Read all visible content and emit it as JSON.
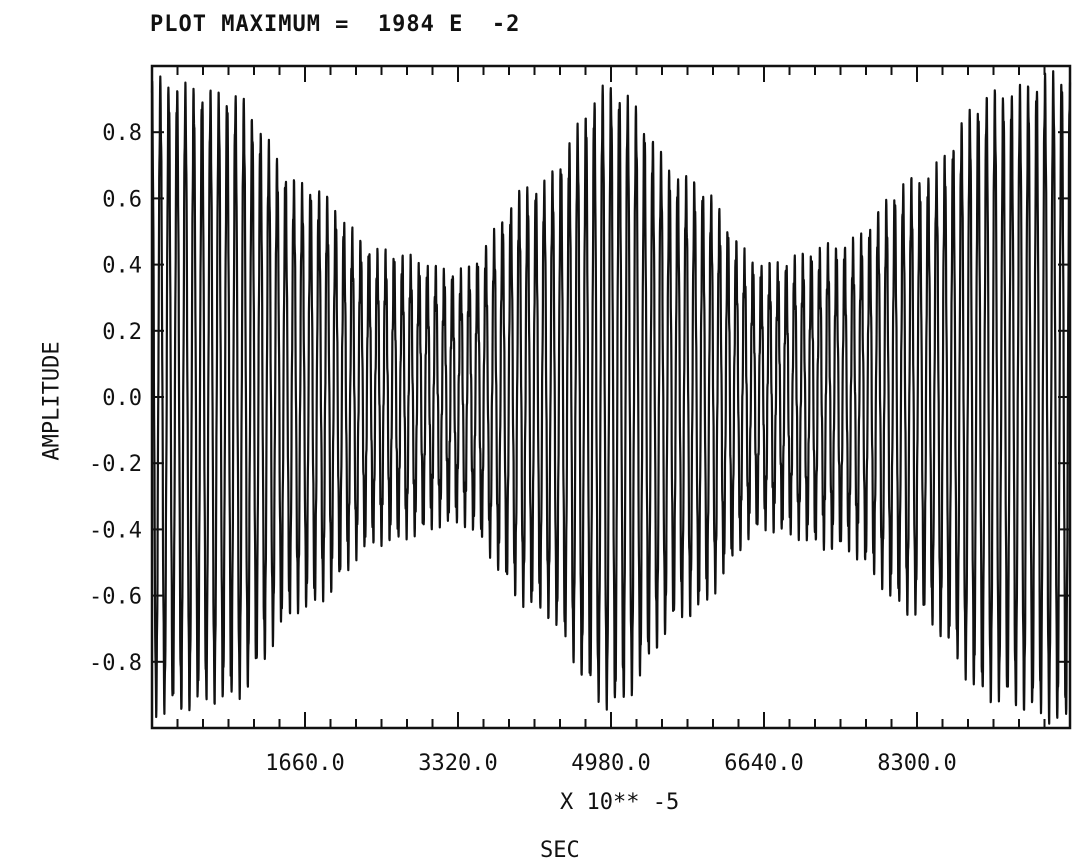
{
  "chart_data": {
    "type": "line",
    "title": "PLOT MAXIMUM =  1984 E  -2",
    "xlabel": "X 10** -5",
    "xunit_label": "SEC",
    "ylabel": "AMPLITUDE",
    "xlim": [
      0,
      9960
    ],
    "ylim": [
      -1.0,
      1.0
    ],
    "x_ticks": [
      1660.0,
      3320.0,
      4980.0,
      6640.0,
      8300.0
    ],
    "x_tick_labels": [
      "1660.0",
      "3320.0",
      "4980.0",
      "6640.0",
      "8300.0"
    ],
    "y_ticks": [
      0.8,
      0.6,
      0.4,
      0.2,
      0.0,
      -0.2,
      -0.4,
      -0.6,
      -0.8
    ],
    "y_tick_labels": [
      "0.8",
      "0.6",
      "0.4",
      "0.2",
      "0.0",
      "-0.2",
      "-0.4",
      "-0.6",
      "-0.8"
    ],
    "grid": false,
    "series": [
      {
        "signal": "beating oscillation",
        "envelope_x": [
          0,
          830,
          1660,
          2490,
          3320,
          4150,
          4980,
          5810,
          6640,
          7470,
          8300,
          9130,
          9960
        ],
        "envelope_max": [
          0.92,
          0.88,
          0.6,
          0.4,
          0.34,
          0.6,
          0.9,
          0.62,
          0.36,
          0.42,
          0.62,
          0.88,
          0.95
        ],
        "carrier_cycles": 110
      }
    ]
  }
}
